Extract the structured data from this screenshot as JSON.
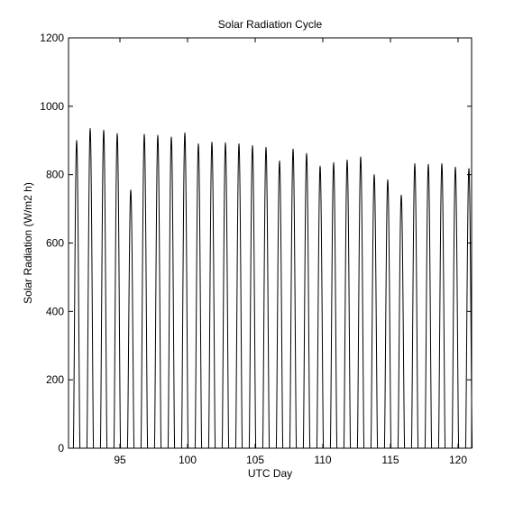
{
  "chart_data": {
    "type": "line",
    "title": "Solar Radiation Cycle",
    "xlabel": "UTC Day",
    "ylabel": "Solar Radiation (W/m2 h)",
    "xlim": [
      91.2,
      121
    ],
    "ylim": [
      0,
      1200
    ],
    "xticks": [
      95,
      100,
      105,
      110,
      115,
      120
    ],
    "yticks": [
      0,
      200,
      400,
      600,
      800,
      1000,
      1200
    ],
    "grid": false,
    "legend": "none",
    "line_color": "#000000",
    "series": [
      {
        "daily_peaks": [
          {
            "day": 91.8,
            "peak": 900
          },
          {
            "day": 92.8,
            "peak": 935
          },
          {
            "day": 93.8,
            "peak": 930
          },
          {
            "day": 94.8,
            "peak": 920
          },
          {
            "day": 95.8,
            "peak": 755
          },
          {
            "day": 96.8,
            "peak": 918
          },
          {
            "day": 97.8,
            "peak": 915
          },
          {
            "day": 98.8,
            "peak": 910
          },
          {
            "day": 99.8,
            "peak": 922
          },
          {
            "day": 100.8,
            "peak": 890
          },
          {
            "day": 101.8,
            "peak": 895
          },
          {
            "day": 102.8,
            "peak": 893
          },
          {
            "day": 103.8,
            "peak": 890
          },
          {
            "day": 104.8,
            "peak": 885
          },
          {
            "day": 105.8,
            "peak": 880
          },
          {
            "day": 106.8,
            "peak": 840
          },
          {
            "day": 107.8,
            "peak": 875
          },
          {
            "day": 108.8,
            "peak": 862
          },
          {
            "day": 109.8,
            "peak": 825
          },
          {
            "day": 110.8,
            "peak": 835
          },
          {
            "day": 111.8,
            "peak": 843
          },
          {
            "day": 112.8,
            "peak": 852
          },
          {
            "day": 113.8,
            "peak": 800
          },
          {
            "day": 114.8,
            "peak": 785
          },
          {
            "day": 115.8,
            "peak": 740
          },
          {
            "day": 116.8,
            "peak": 832
          },
          {
            "day": 117.8,
            "peak": 830
          },
          {
            "day": 118.8,
            "peak": 832
          },
          {
            "day": 119.8,
            "peak": 822
          },
          {
            "day": 120.8,
            "peak": 818
          }
        ]
      }
    ]
  }
}
